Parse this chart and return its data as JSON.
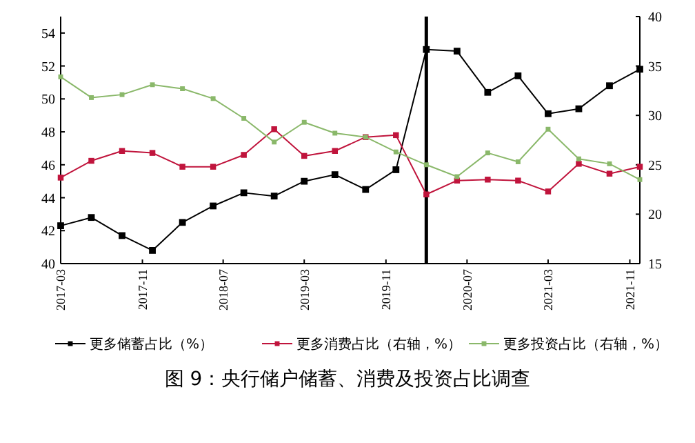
{
  "chart_data": {
    "type": "line",
    "title": "图 9：央行储户储蓄、消费及投资占比调查",
    "x": [
      "2017-03",
      "2017-06",
      "2017-09",
      "2017-12",
      "2018-03",
      "2018-06",
      "2018-09",
      "2018-12",
      "2019-03",
      "2019-06",
      "2019-09",
      "2019-12",
      "2020-03",
      "2020-06",
      "2020-09",
      "2020-12",
      "2021-03",
      "2021-06",
      "2021-09",
      "2021-12"
    ],
    "series": [
      {
        "name": "更多储蓄占比（%）",
        "color": "#000000",
        "values": [
          42.3,
          42.8,
          41.7,
          40.8,
          42.5,
          43.5,
          44.3,
          44.1,
          45.0,
          45.4,
          44.5,
          45.7,
          53.0,
          52.9,
          50.4,
          51.4,
          49.1,
          49.4,
          50.8,
          51.8
        ]
      },
      {
        "name": "更多消费占比（右轴，%）",
        "color": "#c0143c",
        "axis": "y2",
        "values": [
          23.7,
          25.4,
          26.4,
          26.2,
          24.8,
          24.8,
          26.0,
          28.6,
          25.9,
          26.4,
          27.8,
          28.0,
          22.0,
          23.4,
          23.5,
          23.4,
          22.3,
          25.1,
          24.1,
          24.8
        ]
      },
      {
        "name": "更多投资占比（右轴，%）",
        "color": "#8ab86a",
        "axis": "y2",
        "values": [
          33.9,
          31.8,
          32.1,
          33.1,
          32.7,
          31.7,
          29.7,
          27.3,
          29.3,
          28.2,
          27.8,
          26.3,
          25.0,
          23.8,
          26.2,
          25.3,
          28.6,
          25.6,
          25.1,
          23.5
        ]
      }
    ],
    "xlim": [
      "2017-03",
      "2021-12"
    ],
    "xticks": [
      "2017-03",
      "2017-11",
      "2018-07",
      "2019-03",
      "2019-11",
      "2020-07",
      "2021-03",
      "2021-11"
    ],
    "ylim": [
      40,
      55
    ],
    "yticks": [
      40,
      42,
      44,
      46,
      48,
      50,
      52,
      54
    ],
    "y2lim": [
      15,
      40
    ],
    "y2ticks": [
      15,
      20,
      25,
      30,
      35,
      40
    ],
    "ref_lines": [
      {
        "axis": "x",
        "value": "2020-03",
        "color": "#000000"
      }
    ],
    "marker": "square",
    "legend": "bottom",
    "grid": false
  }
}
